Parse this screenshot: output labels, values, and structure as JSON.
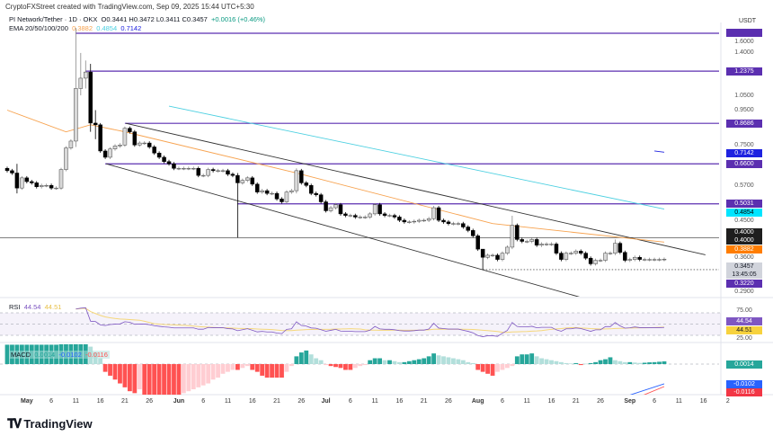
{
  "header": {
    "credit": "CryptoFXStreet created with TradingView.com, Sep 09, 2025 15:44 UTC+5:30",
    "symbol": "PI Network/Tether · 1D · OKX",
    "ohlc": "O0.3441  H0.3472  L0.3411  C0.3457",
    "change": "+0.0016 (+0.46%)",
    "ema_label": "EMA 20/50/100/200",
    "ema_values": [
      "0.3882",
      "0.4854",
      "0.7142"
    ],
    "currency": "USDT"
  },
  "colors": {
    "up": "#d9d9d9",
    "down": "#000000",
    "level": "#5b2fb0",
    "ema_orange": "#f7a350",
    "ema_cyan": "#4dd0e1",
    "ema_blue": "#1e22e0",
    "teal": "#26a69a",
    "teal_light": "#b2dfdb",
    "red": "#ff5252",
    "red_light": "#ffcdd2",
    "rsi": "#7e57c2",
    "rsi_ma": "#f5d77a"
  },
  "chart_data": {
    "type": "candlestick",
    "scale": "log",
    "ylim": [
      0.28,
      1.62
    ],
    "x_ticks": [
      "May",
      "6",
      "11",
      "16",
      "21",
      "26",
      "Jun",
      "6",
      "11",
      "16",
      "21",
      "26",
      "Jul",
      "6",
      "11",
      "16",
      "21",
      "26",
      "Aug",
      "6",
      "11",
      "16",
      "21",
      "26",
      "Sep",
      "6",
      "11",
      "16",
      "2"
    ],
    "y_ticks": [
      "1.6000",
      "1.4000",
      "1.0500",
      "0.9500",
      "0.7500",
      "0.5700",
      "0.4500",
      "0.3600",
      "0.2900"
    ],
    "closes": [
      0.63,
      0.62,
      0.56,
      0.6,
      0.585,
      0.58,
      0.565,
      0.57,
      0.57,
      0.56,
      0.56,
      0.635,
      0.735,
      0.77,
      1.1,
      1.18,
      1.23,
      0.87,
      0.86,
      0.72,
      0.69,
      0.73,
      0.745,
      0.75,
      0.84,
      0.82,
      0.75,
      0.76,
      0.76,
      0.74,
      0.71,
      0.69,
      0.67,
      0.66,
      0.64,
      0.64,
      0.64,
      0.64,
      0.64,
      0.61,
      0.61,
      0.635,
      0.63,
      0.63,
      0.63,
      0.615,
      0.61,
      0.58,
      0.59,
      0.6,
      0.575,
      0.545,
      0.55,
      0.54,
      0.54,
      0.52,
      0.51,
      0.545,
      0.55,
      0.63,
      0.58,
      0.57,
      0.54,
      0.535,
      0.51,
      0.48,
      0.49,
      0.5,
      0.47,
      0.465,
      0.465,
      0.46,
      0.46,
      0.46,
      0.47,
      0.5,
      0.47,
      0.465,
      0.465,
      0.46,
      0.45,
      0.445,
      0.445,
      0.447,
      0.45,
      0.45,
      0.455,
      0.49,
      0.45,
      0.445,
      0.44,
      0.44,
      0.44,
      0.43,
      0.42,
      0.405,
      0.37,
      0.35,
      0.355,
      0.355,
      0.345,
      0.36,
      0.375,
      0.435,
      0.395,
      0.39,
      0.39,
      0.395,
      0.38,
      0.383,
      0.383,
      0.383,
      0.36,
      0.345,
      0.36,
      0.36,
      0.365,
      0.36,
      0.348,
      0.335,
      0.343,
      0.343,
      0.36,
      0.36,
      0.385,
      0.362,
      0.343,
      0.345,
      0.35,
      0.345,
      0.345,
      0.345,
      0.345,
      0.345,
      0.3457
    ],
    "first_open": 0.64,
    "wicks": {
      "2": [
        0.66,
        0.54
      ],
      "14": [
        1.66,
        0.74
      ],
      "15": [
        1.4,
        1.05
      ],
      "16": [
        1.33,
        1.1
      ],
      "17": [
        1.3,
        0.82
      ],
      "18": [
        0.95,
        0.78
      ],
      "47": [
        0.62,
        0.4
      ],
      "59": [
        0.64,
        0.54
      ],
      "97": [
        0.36,
        0.322
      ],
      "103": [
        0.464,
        0.37
      ],
      "124": [
        0.395,
        0.355
      ]
    },
    "levels": [
      {
        "price": 1.6,
        "from": 14,
        "label": ""
      },
      {
        "price": 1.2375,
        "from": 16,
        "label": "1.2375"
      },
      {
        "price": 0.8686,
        "from": 24,
        "label": "0.8686"
      },
      {
        "price": 0.66,
        "from": 20,
        "label": "0.6600"
      },
      {
        "price": 0.5031,
        "from": 47,
        "label": "0.5031"
      }
    ],
    "support_line": {
      "price": 0.4,
      "label": "0.4000"
    },
    "dotted_low": {
      "price": 0.322,
      "from": 97,
      "label": "0.3220"
    },
    "trendlines": [
      {
        "from": [
          24.2,
          0.8686
        ],
        "to": [
          142.4,
          0.356
        ]
      },
      {
        "from": [
          20.2,
          0.66
        ],
        "to": [
          117.7,
          0.265
        ]
      }
    ],
    "ema": [
      {
        "name": "EMA 100",
        "color": "ema_orange",
        "points": [
          [
            0,
            0.95
          ],
          [
            12,
            0.82
          ],
          [
            17,
            0.86
          ],
          [
            24,
            0.82
          ],
          [
            59,
            0.62
          ],
          [
            99,
            0.44
          ],
          [
            134,
            0.388
          ]
        ],
        "label": "0.3882"
      },
      {
        "name": "EMA 200",
        "color": "ema_cyan",
        "points": [
          [
            33,
            0.976
          ],
          [
            134,
            0.4854
          ]
        ],
        "label": "0.4854"
      },
      {
        "name": "EMA",
        "color": "ema_blue",
        "points": [
          [
            132,
            0.72
          ],
          [
            134,
            0.7142
          ]
        ],
        "label": "0.7142"
      }
    ],
    "last_price": {
      "value": "0.3457",
      "countdown": "13:45:05"
    },
    "extra_badges": [
      "0.4000",
      "0.4000"
    ],
    "rsi": {
      "label": "RSI",
      "value": "44.54",
      "ma": "44.51",
      "ticks": [
        "75.00",
        "25.00"
      ]
    },
    "macd": {
      "label": "MACD",
      "hist_value": "0.0014",
      "macd_value": "-0.0102",
      "signal_value": "-0.0116",
      "hist": [
        0.01,
        0.01,
        0.01,
        0.01,
        0.01,
        0.01,
        0.01,
        0.01,
        0.01,
        0.01,
        0.01,
        0.012,
        0.012,
        0.012,
        0.012,
        0.012,
        0.012,
        0.009,
        0.006,
        0.003,
        -0.004,
        -0.006,
        -0.008,
        -0.01,
        -0.012,
        -0.014,
        -0.015,
        -0.013,
        -0.016,
        -0.016,
        -0.016,
        -0.016,
        -0.016,
        -0.016,
        -0.016,
        -0.016,
        -0.015,
        -0.014,
        -0.013,
        -0.012,
        -0.011,
        -0.01,
        -0.008,
        -0.007,
        -0.005,
        -0.004,
        -0.003,
        -0.003,
        -0.002,
        -0.001,
        -0.003,
        -0.004,
        -0.006,
        -0.007,
        -0.007,
        -0.007,
        -0.007,
        -0.004,
        -0.001,
        0.004,
        0.006,
        0.007,
        0.005,
        0.003,
        0.002,
        -0.0005,
        -0.001,
        -0.0015,
        -0.002,
        -0.003,
        -0.003,
        -0.002,
        -0.001,
        -0.0005,
        0.002,
        0.003,
        0.003,
        0.002,
        0.002,
        0.0015,
        0.001,
        0.001,
        0.0015,
        0.002,
        0.0025,
        0.003,
        0.004,
        0.0055,
        0.0045,
        0.004,
        0.0035,
        0.003,
        0.0025,
        0.002,
        0.001,
        0.0005,
        -0.003,
        -0.004,
        -0.005,
        -0.006,
        -0.004,
        -0.003,
        -0.002,
        -0.001,
        0.004,
        0.005,
        0.005,
        0.0055,
        0.004,
        0.003,
        0.0025,
        0.002,
        0.0015,
        0.001,
        0.0005,
        0.0003,
        0.0005,
        -0.0005,
        0.0002,
        0.0005,
        0.001,
        0.002,
        0.0025,
        0.0035,
        0.002,
        0.0015,
        0.001,
        0.001,
        0.0008,
        0.0006,
        0.0007,
        0.0009,
        0.001,
        0.0012,
        0.0014
      ],
      "macd_line": [
        [
          126,
          -0.0168
        ],
        [
          134,
          -0.0102
        ]
      ],
      "signal_line": [
        [
          129,
          -0.0168
        ],
        [
          134,
          -0.0116
        ]
      ]
    }
  }
}
